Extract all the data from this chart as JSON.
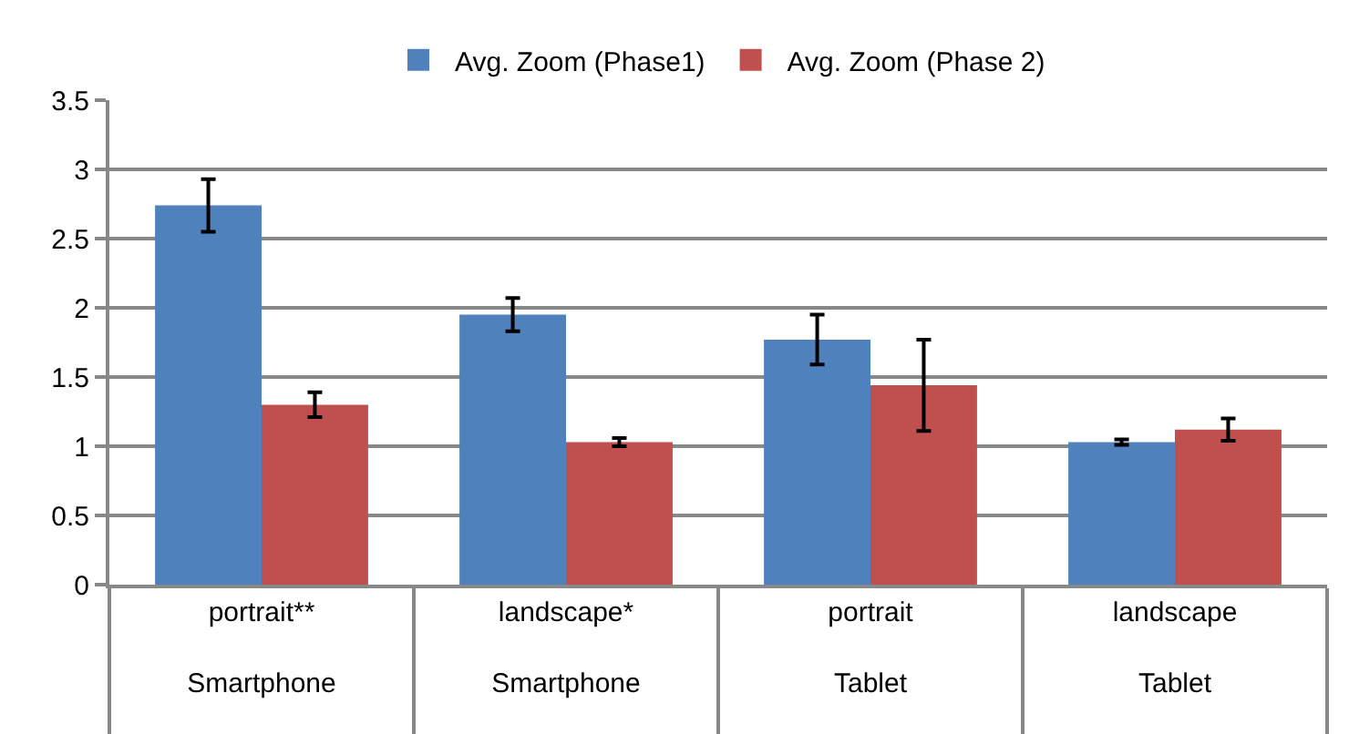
{
  "chart_data": {
    "type": "bar",
    "categories": [
      "portrait**\nSmartphone",
      "landscape*\nSmartphone",
      "portrait\nTablet",
      "landscape\nTablet"
    ],
    "series": [
      {
        "name": "Avg. Zoom (Phase1)",
        "color": "#4f81bd",
        "values": [
          2.74,
          1.95,
          1.77,
          1.03
        ],
        "errors": [
          0.19,
          0.12,
          0.18,
          0.02
        ]
      },
      {
        "name": "Avg. Zoom (Phase 2)",
        "color": "#c0504d",
        "values": [
          1.3,
          1.03,
          1.44,
          1.12
        ],
        "errors": [
          0.09,
          0.03,
          0.33,
          0.08
        ]
      }
    ],
    "ylim": [
      0,
      3.5
    ],
    "yticks": [
      0,
      0.5,
      1,
      1.5,
      2,
      2.5,
      3,
      3.5
    ],
    "grid": "y",
    "legend": "top"
  }
}
